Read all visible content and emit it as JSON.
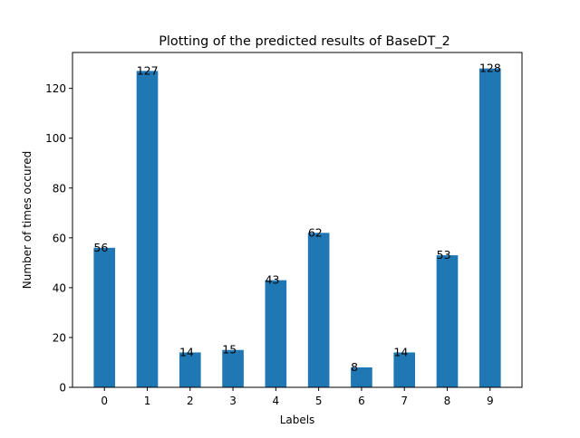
{
  "chart_data": {
    "type": "bar",
    "title": "Plotting of the predicted results of BaseDT_2",
    "xlabel": "Labels",
    "ylabel": "Number of times occured",
    "categories": [
      "0",
      "1",
      "2",
      "3",
      "4",
      "5",
      "6",
      "7",
      "8",
      "9"
    ],
    "values": [
      56,
      127,
      14,
      15,
      43,
      62,
      8,
      14,
      53,
      128
    ],
    "data_labels": [
      "56",
      "127",
      "14",
      "15",
      "43",
      "62",
      "8",
      "14",
      "53",
      "128"
    ],
    "yticks": [
      0,
      20,
      40,
      60,
      80,
      100,
      120
    ],
    "ylim": [
      0,
      134.4
    ],
    "grid": false,
    "legend": "none",
    "bar_color": "#1f77b4"
  }
}
